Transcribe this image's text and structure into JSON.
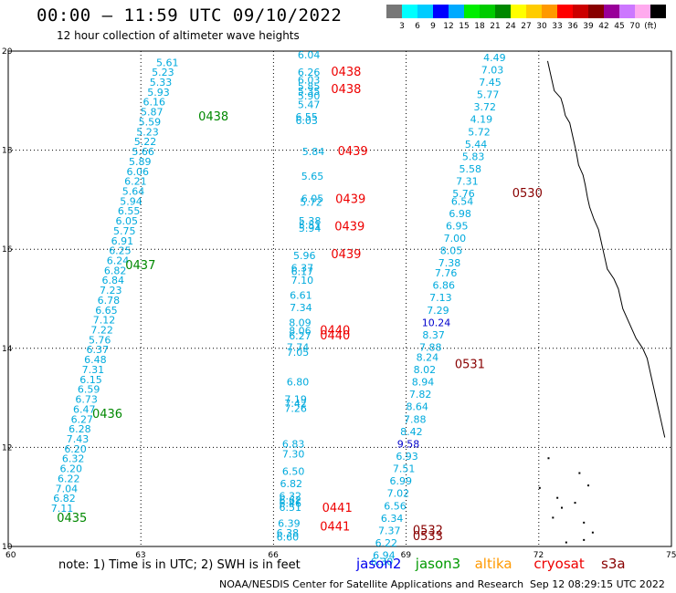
{
  "header": {
    "title": "00:00 – 11:59 UTC 09/10/2022",
    "subtitle": "12 hour collection of altimeter wave heights"
  },
  "colorbar": {
    "colors": [
      "#777777",
      "#00ffff",
      "#00ccff",
      "#0000ff",
      "#00aaff",
      "#00ee00",
      "#00cc00",
      "#008800",
      "#ffff00",
      "#ffcc00",
      "#ff9900",
      "#ff0000",
      "#cc0000",
      "#880000",
      "#990099",
      "#cc77ff",
      "#ffaaee",
      "#000000"
    ],
    "labels": [
      "3",
      "6",
      "9",
      "12",
      "15",
      "18",
      "21",
      "24",
      "27",
      "30",
      "33",
      "36",
      "39",
      "42",
      "45",
      "70",
      "(ft)"
    ]
  },
  "axes": {
    "x_ticks": [
      "60",
      "63",
      "66",
      "69",
      "72",
      "75"
    ],
    "y_ticks": [
      "20",
      "18",
      "16",
      "14",
      "12",
      "10"
    ]
  },
  "chart_data": {
    "type": "scatter",
    "x_unit": "degrees west longitude",
    "y_unit": "degrees north latitude",
    "xlim": [
      60,
      75
    ],
    "ylim": [
      10,
      20
    ],
    "series": [
      {
        "name": "jason3",
        "color": "#00aadd",
        "points": [
          {
            "lon": 63.6,
            "lat": 19.7,
            "v": "5.61"
          },
          {
            "lon": 63.5,
            "lat": 19.5,
            "v": "5.23"
          },
          {
            "lon": 63.45,
            "lat": 19.3,
            "v": "5.33"
          },
          {
            "lon": 63.4,
            "lat": 19.1,
            "v": "5.93"
          },
          {
            "lon": 63.3,
            "lat": 18.9,
            "v": "6.16"
          },
          {
            "lon": 63.25,
            "lat": 18.7,
            "v": "5.87"
          },
          {
            "lon": 63.2,
            "lat": 18.5,
            "v": "5.59"
          },
          {
            "lon": 63.15,
            "lat": 18.3,
            "v": "5.23"
          },
          {
            "lon": 63.1,
            "lat": 18.1,
            "v": "5.22"
          },
          {
            "lon": 63.05,
            "lat": 17.9,
            "v": "5.66"
          },
          {
            "lon": 62.98,
            "lat": 17.7,
            "v": "5.89"
          },
          {
            "lon": 62.93,
            "lat": 17.5,
            "v": "6.06"
          },
          {
            "lon": 62.88,
            "lat": 17.3,
            "v": "6.21"
          },
          {
            "lon": 62.83,
            "lat": 17.1,
            "v": "5.64"
          },
          {
            "lon": 62.78,
            "lat": 16.9,
            "v": "5.94"
          },
          {
            "lon": 62.73,
            "lat": 16.7,
            "v": "6.55"
          },
          {
            "lon": 62.68,
            "lat": 16.5,
            "v": "6.05"
          },
          {
            "lon": 62.63,
            "lat": 16.3,
            "v": "5.75"
          },
          {
            "lon": 62.58,
            "lat": 16.1,
            "v": "6.91"
          },
          {
            "lon": 62.53,
            "lat": 15.9,
            "v": "6.25"
          },
          {
            "lon": 62.48,
            "lat": 15.7,
            "v": "6.24"
          },
          {
            "lon": 62.42,
            "lat": 15.5,
            "v": "6.82"
          },
          {
            "lon": 62.37,
            "lat": 15.3,
            "v": "6.84"
          },
          {
            "lon": 62.32,
            "lat": 15.1,
            "v": "7.23"
          },
          {
            "lon": 62.27,
            "lat": 14.9,
            "v": "6.78"
          },
          {
            "lon": 62.22,
            "lat": 14.7,
            "v": "6.65"
          },
          {
            "lon": 62.17,
            "lat": 14.5,
            "v": "7.12"
          },
          {
            "lon": 62.12,
            "lat": 14.3,
            "v": "7.22"
          },
          {
            "lon": 62.07,
            "lat": 14.1,
            "v": "5.76"
          },
          {
            "lon": 62.02,
            "lat": 13.9,
            "v": "6.37"
          },
          {
            "lon": 61.97,
            "lat": 13.7,
            "v": "6.48"
          },
          {
            "lon": 61.92,
            "lat": 13.5,
            "v": "7.31"
          },
          {
            "lon": 61.87,
            "lat": 13.3,
            "v": "6.15"
          },
          {
            "lon": 61.82,
            "lat": 13.1,
            "v": "6.59"
          },
          {
            "lon": 61.77,
            "lat": 12.9,
            "v": "6.73"
          },
          {
            "lon": 61.72,
            "lat": 12.7,
            "v": "6.47"
          },
          {
            "lon": 61.67,
            "lat": 12.5,
            "v": "6.27"
          },
          {
            "lon": 61.62,
            "lat": 12.3,
            "v": "6.28"
          },
          {
            "lon": 61.57,
            "lat": 12.1,
            "v": "7.43"
          },
          {
            "lon": 61.52,
            "lat": 11.9,
            "v": "6.20"
          },
          {
            "lon": 61.47,
            "lat": 11.7,
            "v": "6.32"
          },
          {
            "lon": 61.42,
            "lat": 11.5,
            "v": "6.20"
          },
          {
            "lon": 61.37,
            "lat": 11.3,
            "v": "6.22"
          },
          {
            "lon": 61.32,
            "lat": 11.1,
            "v": "7.04"
          },
          {
            "lon": 61.27,
            "lat": 10.9,
            "v": "6.82"
          },
          {
            "lon": 61.22,
            "lat": 10.7,
            "v": "7.11"
          },
          {
            "lon": 66.8,
            "lat": 19.85,
            "v": "6.04"
          },
          {
            "lon": 66.8,
            "lat": 19.5,
            "v": "6.26"
          },
          {
            "lon": 66.8,
            "lat": 19.35,
            "v": "6.03"
          },
          {
            "lon": 66.8,
            "lat": 19.22,
            "v": "5.85"
          },
          {
            "lon": 66.8,
            "lat": 19.12,
            "v": "5.35"
          },
          {
            "lon": 66.8,
            "lat": 19.02,
            "v": "5.90"
          },
          {
            "lon": 66.8,
            "lat": 18.85,
            "v": "5.47"
          },
          {
            "lon": 66.75,
            "lat": 18.6,
            "v": "6.55"
          },
          {
            "lon": 66.75,
            "lat": 18.53,
            "v": "6.03"
          },
          {
            "lon": 66.9,
            "lat": 17.9,
            "v": "5.84"
          },
          {
            "lon": 66.88,
            "lat": 17.4,
            "v": "5.65"
          },
          {
            "lon": 66.88,
            "lat": 16.95,
            "v": "6.05"
          },
          {
            "lon": 66.85,
            "lat": 16.88,
            "v": "5.72"
          },
          {
            "lon": 66.82,
            "lat": 16.5,
            "v": "5.38"
          },
          {
            "lon": 66.82,
            "lat": 16.42,
            "v": "5.51"
          },
          {
            "lon": 66.82,
            "lat": 16.35,
            "v": "5.94"
          },
          {
            "lon": 66.7,
            "lat": 15.8,
            "v": "5.96"
          },
          {
            "lon": 66.65,
            "lat": 15.55,
            "v": "6.37"
          },
          {
            "lon": 66.65,
            "lat": 15.48,
            "v": "6.17"
          },
          {
            "lon": 66.65,
            "lat": 15.3,
            "v": "7.10"
          },
          {
            "lon": 66.62,
            "lat": 15.0,
            "v": "6.61"
          },
          {
            "lon": 66.62,
            "lat": 14.75,
            "v": "7.34"
          },
          {
            "lon": 66.6,
            "lat": 14.45,
            "v": "8.09"
          },
          {
            "lon": 66.6,
            "lat": 14.28,
            "v": "8.06"
          },
          {
            "lon": 66.6,
            "lat": 14.18,
            "v": "6.27"
          },
          {
            "lon": 66.55,
            "lat": 13.95,
            "v": "7.74"
          },
          {
            "lon": 66.55,
            "lat": 13.85,
            "v": "7.05"
          },
          {
            "lon": 66.55,
            "lat": 13.25,
            "v": "6.80"
          },
          {
            "lon": 66.5,
            "lat": 12.9,
            "v": "7.19"
          },
          {
            "lon": 66.5,
            "lat": 12.82,
            "v": "7.42"
          },
          {
            "lon": 66.5,
            "lat": 12.72,
            "v": "7.26"
          },
          {
            "lon": 66.45,
            "lat": 12.0,
            "v": "6.83"
          },
          {
            "lon": 66.45,
            "lat": 11.8,
            "v": "7.30"
          },
          {
            "lon": 66.45,
            "lat": 11.45,
            "v": "6.50"
          },
          {
            "lon": 66.4,
            "lat": 11.2,
            "v": "6.82"
          },
          {
            "lon": 66.38,
            "lat": 10.95,
            "v": "6.32"
          },
          {
            "lon": 66.38,
            "lat": 10.87,
            "v": "6.62"
          },
          {
            "lon": 66.38,
            "lat": 10.8,
            "v": "6.46"
          },
          {
            "lon": 66.38,
            "lat": 10.72,
            "v": "6.51"
          },
          {
            "lon": 66.35,
            "lat": 10.4,
            "v": "6.39"
          },
          {
            "lon": 66.32,
            "lat": 10.2,
            "v": "6.38"
          },
          {
            "lon": 66.32,
            "lat": 10.12,
            "v": "6.60"
          },
          {
            "lon": 71.0,
            "lat": 19.8,
            "v": "4.49"
          },
          {
            "lon": 70.95,
            "lat": 19.55,
            "v": "7.03"
          },
          {
            "lon": 70.9,
            "lat": 19.3,
            "v": "7.45"
          },
          {
            "lon": 70.85,
            "lat": 19.05,
            "v": "5.77"
          },
          {
            "lon": 70.78,
            "lat": 18.8,
            "v": "3.72"
          },
          {
            "lon": 70.7,
            "lat": 18.55,
            "v": "4.19"
          },
          {
            "lon": 70.65,
            "lat": 18.3,
            "v": "5.72"
          },
          {
            "lon": 70.58,
            "lat": 18.05,
            "v": "5.44"
          },
          {
            "lon": 70.52,
            "lat": 17.8,
            "v": "5.83"
          },
          {
            "lon": 70.45,
            "lat": 17.55,
            "v": "5.58"
          },
          {
            "lon": 70.38,
            "lat": 17.3,
            "v": "7.31"
          },
          {
            "lon": 70.3,
            "lat": 17.05,
            "v": "5.76"
          },
          {
            "lon": 70.27,
            "lat": 16.9,
            "v": "6.54"
          },
          {
            "lon": 70.22,
            "lat": 16.65,
            "v": "6.98"
          },
          {
            "lon": 70.15,
            "lat": 16.4,
            "v": "6.95"
          },
          {
            "lon": 70.1,
            "lat": 16.15,
            "v": "7.00"
          },
          {
            "lon": 70.02,
            "lat": 15.9,
            "v": "8.05"
          },
          {
            "lon": 69.98,
            "lat": 15.65,
            "v": "7.38"
          },
          {
            "lon": 69.9,
            "lat": 15.45,
            "v": "7.76"
          },
          {
            "lon": 69.85,
            "lat": 15.2,
            "v": "6.86"
          },
          {
            "lon": 69.78,
            "lat": 14.95,
            "v": "7.13"
          },
          {
            "lon": 69.72,
            "lat": 14.7,
            "v": "7.29"
          },
          {
            "lon": 69.62,
            "lat": 14.2,
            "v": "8.37"
          },
          {
            "lon": 69.55,
            "lat": 13.95,
            "v": "7.88"
          },
          {
            "lon": 69.48,
            "lat": 13.75,
            "v": "8.24"
          },
          {
            "lon": 69.42,
            "lat": 13.5,
            "v": "8.02"
          },
          {
            "lon": 69.38,
            "lat": 13.25,
            "v": "8.94"
          },
          {
            "lon": 69.32,
            "lat": 13.0,
            "v": "7.82"
          },
          {
            "lon": 69.25,
            "lat": 12.75,
            "v": "8.64"
          },
          {
            "lon": 69.2,
            "lat": 12.5,
            "v": "7.88"
          },
          {
            "lon": 69.12,
            "lat": 12.25,
            "v": "8.42"
          },
          {
            "lon": 69.02,
            "lat": 11.75,
            "v": "6.93"
          },
          {
            "lon": 68.95,
            "lat": 11.5,
            "v": "7.51"
          },
          {
            "lon": 68.88,
            "lat": 11.25,
            "v": "6.99"
          },
          {
            "lon": 68.82,
            "lat": 11.0,
            "v": "7.02"
          },
          {
            "lon": 68.75,
            "lat": 10.75,
            "v": "6.56"
          },
          {
            "lon": 68.68,
            "lat": 10.5,
            "v": "6.34"
          },
          {
            "lon": 68.62,
            "lat": 10.25,
            "v": "7.37"
          },
          {
            "lon": 68.55,
            "lat": 10.0,
            "v": "6.22"
          },
          {
            "lon": 68.5,
            "lat": 9.75,
            "v": "6.94"
          },
          {
            "lon": 68.45,
            "lat": 9.62,
            "v": "6.30"
          }
        ]
      },
      {
        "name": "jason2",
        "color": "#0000cc",
        "points": [
          {
            "lon": 69.68,
            "lat": 14.45,
            "v": "10.24"
          },
          {
            "lon": 69.05,
            "lat": 12.0,
            "v": "9.58"
          }
        ]
      }
    ],
    "pass_times": [
      {
        "lon": 64.3,
        "lat": 18.6,
        "t": "0438",
        "color": "#008800"
      },
      {
        "lon": 62.65,
        "lat": 15.6,
        "t": "0437",
        "color": "#008800"
      },
      {
        "lon": 61.9,
        "lat": 12.6,
        "t": "0436",
        "color": "#008800"
      },
      {
        "lon": 61.1,
        "lat": 10.5,
        "t": "0435",
        "color": "#008800"
      },
      {
        "lon": 67.3,
        "lat": 19.5,
        "t": "0438",
        "color": "#ee0000"
      },
      {
        "lon": 67.3,
        "lat": 19.15,
        "t": "0438",
        "color": "#ee0000"
      },
      {
        "lon": 67.45,
        "lat": 17.9,
        "t": "0439",
        "color": "#ee0000"
      },
      {
        "lon": 67.4,
        "lat": 16.93,
        "t": "0439",
        "color": "#ee0000"
      },
      {
        "lon": 67.38,
        "lat": 16.38,
        "t": "0439",
        "color": "#ee0000"
      },
      {
        "lon": 67.3,
        "lat": 15.82,
        "t": "0439",
        "color": "#ee0000"
      },
      {
        "lon": 67.05,
        "lat": 14.28,
        "t": "0440",
        "color": "#ee0000"
      },
      {
        "lon": 67.05,
        "lat": 14.18,
        "t": "0440",
        "color": "#ee0000"
      },
      {
        "lon": 67.1,
        "lat": 10.7,
        "t": "0441",
        "color": "#ee0000"
      },
      {
        "lon": 67.05,
        "lat": 10.32,
        "t": "0441",
        "color": "#ee0000"
      },
      {
        "lon": 71.4,
        "lat": 17.05,
        "t": "0530",
        "color": "#880000"
      },
      {
        "lon": 70.1,
        "lat": 13.6,
        "t": "0531",
        "color": "#880000"
      },
      {
        "lon": 69.15,
        "lat": 10.25,
        "t": "0532",
        "color": "#880000"
      },
      {
        "lon": 69.15,
        "lat": 10.13,
        "t": "0533",
        "color": "#880000"
      }
    ]
  },
  "footer": {
    "note": "note: 1) Time is in UTC; 2) SWH is in feet",
    "legend": [
      {
        "label": "jason2",
        "color": "#0000ee"
      },
      {
        "label": "jason3",
        "color": "#009900"
      },
      {
        "label": "altika",
        "color": "#ff9900"
      },
      {
        "label": "cryosat",
        "color": "#ee0000"
      },
      {
        "label": "s3a",
        "color": "#880000"
      }
    ],
    "credit": "NOAA/NESDIS Center for Satellite Applications and Research",
    "timestamp": "Sep 12 08:29:15 UTC 2022"
  }
}
